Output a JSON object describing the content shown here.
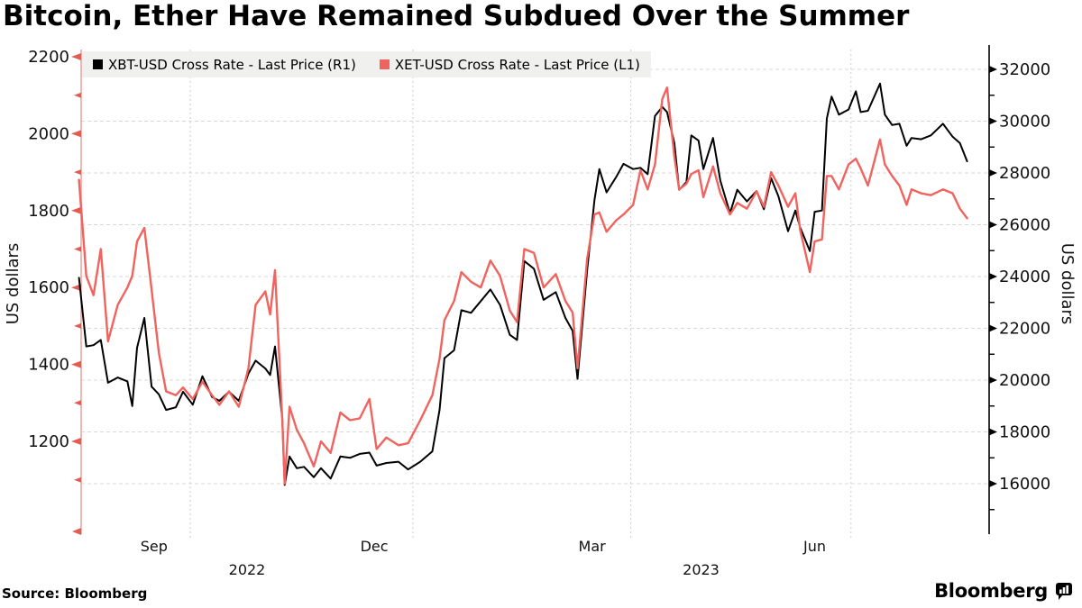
{
  "title": "Bitcoin, Ether Have Remained Subdued Over the Summer",
  "source": "Source: Bloomberg",
  "brand": "Bloomberg",
  "legend": {
    "items": [
      {
        "label": "XBT-USD Cross Rate - Last Price (R1)",
        "color": "#000000"
      },
      {
        "label": "XET-USD Cross Rate - Last Price (L1)",
        "color": "#F0635E"
      }
    ]
  },
  "chart_data": {
    "type": "line",
    "title": "Bitcoin, Ether Have Remained Subdued Over the Summer",
    "grid": true,
    "legend_position": "top-left",
    "left_axis": {
      "label": "US dollars",
      "ticks_major": [
        2200,
        2000,
        1800,
        1600,
        1400,
        1200
      ],
      "ticks_minor": [
        2100,
        1900,
        1700,
        1500,
        1300,
        1100
      ],
      "range": [
        1080,
        2220
      ],
      "axis_color": "#F2A49F",
      "tick_color": "#E45B52"
    },
    "right_axis": {
      "label": "US dollars",
      "ticks_major": [
        32000,
        30000,
        28000,
        26000,
        24000,
        22000,
        20000,
        18000,
        16000
      ],
      "ticks_minor": [
        31000,
        29000,
        27000,
        25000,
        23000,
        21000,
        19000,
        17000,
        15000
      ],
      "range": [
        15000,
        32600
      ],
      "axis_color": "#000000",
      "tick_color": "#000000"
    },
    "x_axis": {
      "month_labels": [
        {
          "label": "Sep",
          "date": "2022-09-16"
        },
        {
          "label": "Dec",
          "date": "2022-12-16"
        },
        {
          "label": "Mar",
          "date": "2023-03-16"
        },
        {
          "label": "Jun",
          "date": "2023-06-16"
        }
      ],
      "year_labels": [
        "2022",
        "2023"
      ],
      "gridline_dates": [
        "2022-10-01",
        "2023-01-01",
        "2023-04-01",
        "2023-07-01"
      ]
    },
    "dates": [
      "2022-08-16",
      "2022-08-19",
      "2022-08-22",
      "2022-08-25",
      "2022-08-28",
      "2022-09-01",
      "2022-09-05",
      "2022-09-07",
      "2022-09-09",
      "2022-09-12",
      "2022-09-15",
      "2022-09-18",
      "2022-09-21",
      "2022-09-25",
      "2022-09-28",
      "2022-10-02",
      "2022-10-06",
      "2022-10-10",
      "2022-10-13",
      "2022-10-17",
      "2022-10-21",
      "2022-10-25",
      "2022-10-28",
      "2022-11-01",
      "2022-11-03",
      "2022-11-05",
      "2022-11-08",
      "2022-11-09",
      "2022-11-11",
      "2022-11-14",
      "2022-11-17",
      "2022-11-21",
      "2022-11-24",
      "2022-11-28",
      "2022-12-02",
      "2022-12-06",
      "2022-12-10",
      "2022-12-14",
      "2022-12-17",
      "2022-12-21",
      "2022-12-26",
      "2022-12-30",
      "2023-01-04",
      "2023-01-09",
      "2023-01-12",
      "2023-01-14",
      "2023-01-18",
      "2023-01-21",
      "2023-01-25",
      "2023-01-29",
      "2023-02-02",
      "2023-02-06",
      "2023-02-10",
      "2023-02-13",
      "2023-02-16",
      "2023-02-20",
      "2023-02-24",
      "2023-03-01",
      "2023-03-05",
      "2023-03-08",
      "2023-03-10",
      "2023-03-14",
      "2023-03-17",
      "2023-03-19",
      "2023-03-22",
      "2023-03-26",
      "2023-03-29",
      "2023-04-02",
      "2023-04-05",
      "2023-04-08",
      "2023-04-11",
      "2023-04-14",
      "2023-04-16",
      "2023-04-19",
      "2023-04-21",
      "2023-04-24",
      "2023-04-26",
      "2023-04-29",
      "2023-05-01",
      "2023-05-05",
      "2023-05-08",
      "2023-05-12",
      "2023-05-15",
      "2023-05-19",
      "2023-05-23",
      "2023-05-26",
      "2023-05-29",
      "2023-06-01",
      "2023-06-05",
      "2023-06-08",
      "2023-06-10",
      "2023-06-14",
      "2023-06-16",
      "2023-06-19",
      "2023-06-21",
      "2023-06-23",
      "2023-06-26",
      "2023-06-30",
      "2023-07-03",
      "2023-07-05",
      "2023-07-08",
      "2023-07-13",
      "2023-07-15",
      "2023-07-18",
      "2023-07-21",
      "2023-07-24",
      "2023-07-26",
      "2023-07-30",
      "2023-08-03",
      "2023-08-08",
      "2023-08-12",
      "2023-08-15",
      "2023-08-18"
    ],
    "series": [
      {
        "name": "XBT-USD Cross Rate - Last Price",
        "legend_tag": "R1",
        "axis": "right",
        "color": "#000000",
        "width": 2,
        "values": [
          23950,
          21300,
          21350,
          21550,
          19900,
          20100,
          19950,
          19000,
          21250,
          22400,
          19750,
          19450,
          18850,
          18950,
          19550,
          19050,
          20150,
          19350,
          19200,
          19550,
          19200,
          20250,
          20750,
          20450,
          20200,
          21300,
          18500,
          15950,
          17050,
          16600,
          16650,
          16250,
          16600,
          16200,
          17050,
          17000,
          17150,
          17200,
          16700,
          16800,
          16850,
          16550,
          16850,
          17250,
          18850,
          20850,
          21150,
          22700,
          22600,
          23050,
          23500,
          22900,
          21750,
          21550,
          24600,
          24300,
          23100,
          23400,
          22400,
          21900,
          20050,
          24250,
          26950,
          28150,
          27250,
          27850,
          28350,
          28150,
          28200,
          27950,
          30200,
          30550,
          30350,
          29150,
          27350,
          27650,
          29450,
          29250,
          28150,
          29350,
          27700,
          26450,
          27350,
          26900,
          27300,
          26600,
          27800,
          27100,
          25750,
          26550,
          25900,
          24980,
          26500,
          26550,
          30100,
          30950,
          30250,
          30450,
          31150,
          30350,
          30400,
          31450,
          30250,
          29850,
          29900,
          29050,
          29350,
          29300,
          29450,
          29900,
          29400,
          29150,
          28450
        ]
      },
      {
        "name": "XET-USD Cross Rate - Last Price",
        "legend_tag": "L1",
        "axis": "left",
        "color": "#F0635E",
        "width": 2.4,
        "values": [
          1880,
          1630,
          1580,
          1700,
          1460,
          1555,
          1600,
          1630,
          1720,
          1755,
          1595,
          1430,
          1330,
          1320,
          1340,
          1310,
          1355,
          1320,
          1295,
          1330,
          1290,
          1390,
          1555,
          1590,
          1530,
          1645,
          1255,
          1090,
          1290,
          1230,
          1195,
          1135,
          1200,
          1170,
          1275,
          1255,
          1260,
          1310,
          1180,
          1210,
          1190,
          1195,
          1255,
          1320,
          1415,
          1515,
          1565,
          1640,
          1615,
          1600,
          1670,
          1630,
          1540,
          1510,
          1700,
          1690,
          1600,
          1635,
          1565,
          1535,
          1390,
          1675,
          1790,
          1795,
          1745,
          1775,
          1790,
          1815,
          1905,
          1855,
          1920,
          2090,
          2120,
          1940,
          1855,
          1870,
          1895,
          1905,
          1835,
          1915,
          1845,
          1790,
          1820,
          1805,
          1850,
          1810,
          1900,
          1865,
          1810,
          1845,
          1750,
          1640,
          1720,
          1725,
          1890,
          1890,
          1855,
          1920,
          1935,
          1910,
          1865,
          1985,
          1920,
          1890,
          1865,
          1815,
          1855,
          1845,
          1840,
          1855,
          1845,
          1805,
          1780
        ]
      }
    ]
  }
}
